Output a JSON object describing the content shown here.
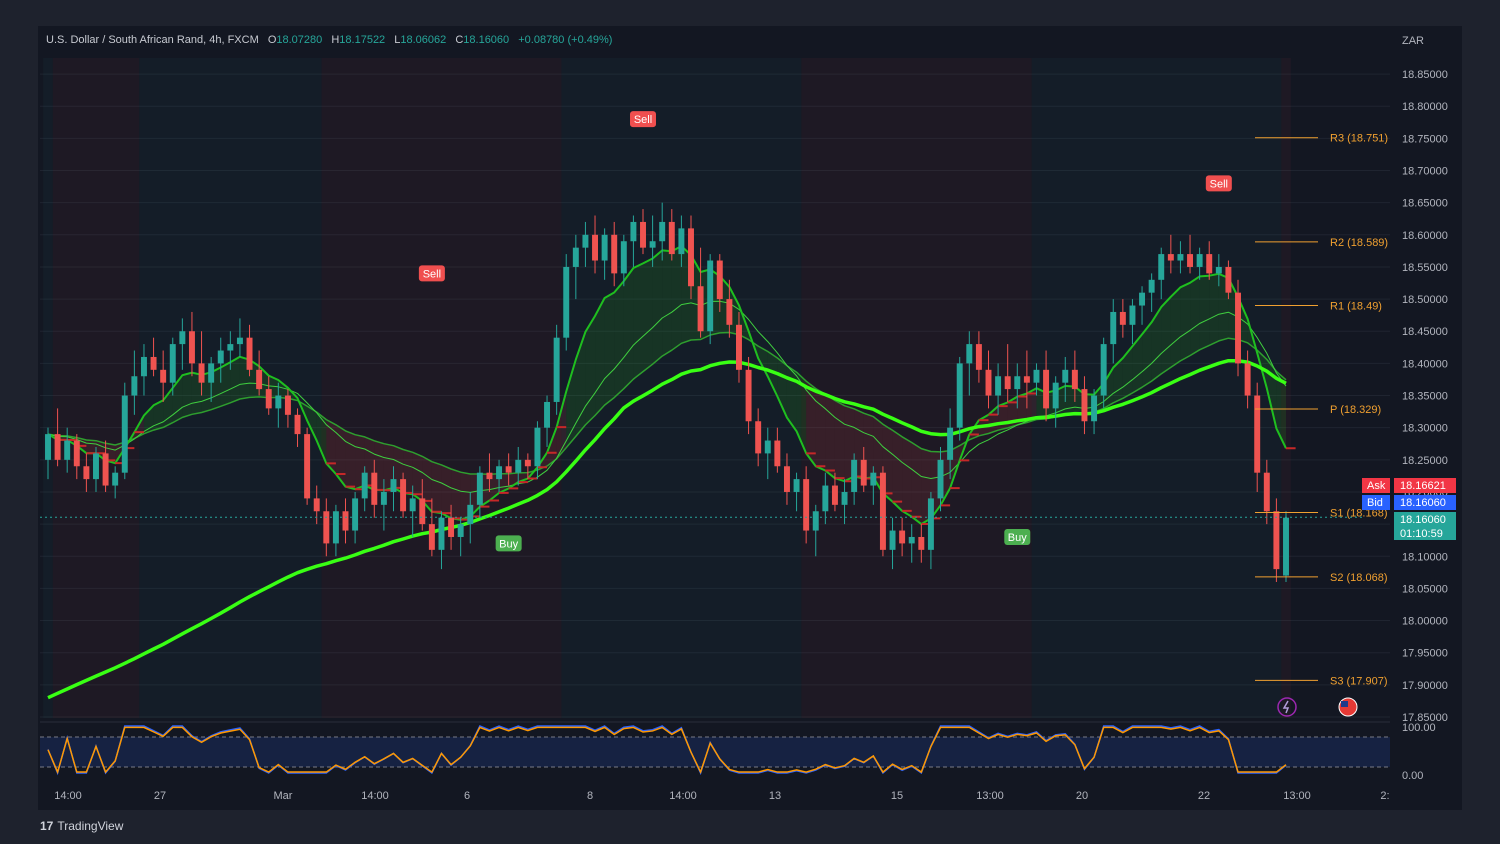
{
  "header": {
    "symbol": "U.S. Dollar / South African Rand, 4h, FXCM",
    "o_label": "O",
    "o_value": "18.07280",
    "h_label": "H",
    "h_value": "18.17522",
    "l_label": "L",
    "l_value": "18.06062",
    "c_label": "C",
    "c_value": "18.16060",
    "change": "+0.08780 (+0.49%)"
  },
  "currency": "ZAR",
  "brand": "TradingView",
  "colors": {
    "up": "#26a69a",
    "down": "#ef5350",
    "ema": "#39ff14",
    "pivot": "#f0a030",
    "background": "#131722"
  },
  "chart_data": {
    "type": "candlestick",
    "y_axis": {
      "range": [
        17.85,
        18.875
      ],
      "ticks": [
        "18.85000",
        "18.80000",
        "18.75000",
        "18.70000",
        "18.65000",
        "18.60000",
        "18.55000",
        "18.50000",
        "18.45000",
        "18.40000",
        "18.35000",
        "18.30000",
        "18.25000",
        "18.20000",
        "18.15000",
        "18.10000",
        "18.05000",
        "18.00000",
        "17.95000",
        "17.90000",
        "17.85000"
      ]
    },
    "x_axis": {
      "ticks": [
        "14:00",
        "27",
        "Mar",
        "14:00",
        "6",
        "8",
        "14:00",
        "13",
        "15",
        "13:00",
        "20",
        "22",
        "13:00",
        "2:"
      ]
    },
    "candles": [
      [
        18.25,
        18.3,
        18.22,
        18.29
      ],
      [
        18.29,
        18.33,
        18.24,
        18.25
      ],
      [
        18.25,
        18.3,
        18.23,
        18.28
      ],
      [
        18.28,
        18.29,
        18.22,
        18.24
      ],
      [
        18.24,
        18.26,
        18.2,
        18.22
      ],
      [
        18.22,
        18.27,
        18.2,
        18.26
      ],
      [
        18.26,
        18.28,
        18.2,
        18.21
      ],
      [
        18.21,
        18.24,
        18.19,
        18.23
      ],
      [
        18.23,
        18.37,
        18.22,
        18.35
      ],
      [
        18.35,
        18.42,
        18.32,
        18.38
      ],
      [
        18.38,
        18.43,
        18.35,
        18.41
      ],
      [
        18.41,
        18.44,
        18.38,
        18.39
      ],
      [
        18.39,
        18.42,
        18.34,
        18.37
      ],
      [
        18.37,
        18.44,
        18.35,
        18.43
      ],
      [
        18.43,
        18.47,
        18.39,
        18.45
      ],
      [
        18.45,
        18.48,
        18.38,
        18.4
      ],
      [
        18.4,
        18.45,
        18.35,
        18.37
      ],
      [
        18.37,
        18.41,
        18.34,
        18.4
      ],
      [
        18.4,
        18.44,
        18.37,
        18.42
      ],
      [
        18.42,
        18.45,
        18.39,
        18.43
      ],
      [
        18.43,
        18.47,
        18.41,
        18.44
      ],
      [
        18.44,
        18.46,
        18.38,
        18.39
      ],
      [
        18.39,
        18.42,
        18.35,
        18.36
      ],
      [
        18.36,
        18.38,
        18.32,
        18.33
      ],
      [
        18.33,
        18.37,
        18.3,
        18.35
      ],
      [
        18.35,
        18.36,
        18.3,
        18.32
      ],
      [
        18.32,
        18.33,
        18.27,
        18.29
      ],
      [
        18.29,
        18.3,
        18.18,
        18.19
      ],
      [
        18.19,
        18.21,
        18.15,
        18.17
      ],
      [
        18.17,
        18.19,
        18.1,
        18.12
      ],
      [
        18.12,
        18.18,
        18.1,
        18.17
      ],
      [
        18.17,
        18.19,
        18.12,
        18.14
      ],
      [
        18.14,
        18.2,
        18.12,
        18.19
      ],
      [
        18.19,
        18.24,
        18.17,
        18.23
      ],
      [
        18.23,
        18.25,
        18.16,
        18.18
      ],
      [
        18.18,
        18.22,
        18.14,
        18.2
      ],
      [
        18.2,
        18.24,
        18.17,
        18.22
      ],
      [
        18.22,
        18.23,
        18.16,
        18.17
      ],
      [
        18.17,
        18.21,
        18.13,
        18.19
      ],
      [
        18.19,
        18.22,
        18.14,
        18.15
      ],
      [
        18.15,
        18.19,
        18.1,
        18.11
      ],
      [
        18.11,
        18.17,
        18.08,
        18.16
      ],
      [
        18.16,
        18.18,
        18.11,
        18.13
      ],
      [
        18.13,
        18.16,
        18.1,
        18.15
      ],
      [
        18.15,
        18.2,
        18.12,
        18.18
      ],
      [
        18.18,
        18.24,
        18.16,
        18.23
      ],
      [
        18.23,
        18.26,
        18.2,
        18.22
      ],
      [
        18.22,
        18.25,
        18.2,
        18.24
      ],
      [
        18.24,
        18.26,
        18.21,
        18.23
      ],
      [
        18.23,
        18.27,
        18.21,
        18.25
      ],
      [
        18.25,
        18.26,
        18.22,
        18.24
      ],
      [
        18.24,
        18.31,
        18.22,
        18.3
      ],
      [
        18.3,
        18.35,
        18.27,
        18.34
      ],
      [
        18.34,
        18.46,
        18.32,
        18.44
      ],
      [
        18.44,
        18.57,
        18.42,
        18.55
      ],
      [
        18.55,
        18.6,
        18.5,
        18.58
      ],
      [
        18.58,
        18.62,
        18.55,
        18.6
      ],
      [
        18.6,
        18.63,
        18.54,
        18.56
      ],
      [
        18.56,
        18.61,
        18.53,
        18.6
      ],
      [
        18.6,
        18.62,
        18.52,
        18.54
      ],
      [
        18.54,
        18.6,
        18.52,
        18.59
      ],
      [
        18.59,
        18.63,
        18.55,
        18.62
      ],
      [
        18.62,
        18.64,
        18.57,
        18.58
      ],
      [
        18.58,
        18.63,
        18.55,
        18.59
      ],
      [
        18.59,
        18.65,
        18.56,
        18.62
      ],
      [
        18.62,
        18.64,
        18.56,
        18.57
      ],
      [
        18.57,
        18.63,
        18.55,
        18.61
      ],
      [
        18.61,
        18.63,
        18.5,
        18.52
      ],
      [
        18.52,
        18.58,
        18.44,
        18.45
      ],
      [
        18.45,
        18.57,
        18.43,
        18.56
      ],
      [
        18.56,
        18.57,
        18.48,
        18.5
      ],
      [
        18.5,
        18.53,
        18.44,
        18.46
      ],
      [
        18.46,
        18.48,
        18.37,
        18.39
      ],
      [
        18.39,
        18.41,
        18.29,
        18.31
      ],
      [
        18.31,
        18.33,
        18.24,
        18.26
      ],
      [
        18.26,
        18.3,
        18.22,
        18.28
      ],
      [
        18.28,
        18.3,
        18.23,
        18.24
      ],
      [
        18.24,
        18.26,
        18.18,
        18.2
      ],
      [
        18.2,
        18.23,
        18.17,
        18.22
      ],
      [
        18.22,
        18.24,
        18.12,
        18.14
      ],
      [
        18.14,
        18.18,
        18.1,
        18.17
      ],
      [
        18.17,
        18.23,
        18.15,
        18.21
      ],
      [
        18.21,
        18.23,
        18.17,
        18.18
      ],
      [
        18.18,
        18.22,
        18.15,
        18.2
      ],
      [
        18.2,
        18.26,
        18.18,
        18.25
      ],
      [
        18.25,
        18.27,
        18.2,
        18.21
      ],
      [
        18.21,
        18.24,
        18.18,
        18.23
      ],
      [
        18.23,
        18.24,
        18.1,
        18.11
      ],
      [
        18.11,
        18.16,
        18.08,
        18.14
      ],
      [
        18.14,
        18.16,
        18.1,
        18.12
      ],
      [
        18.12,
        18.15,
        18.09,
        18.13
      ],
      [
        18.13,
        18.15,
        18.09,
        18.11
      ],
      [
        18.11,
        18.2,
        18.08,
        18.19
      ],
      [
        18.19,
        18.27,
        18.17,
        18.25
      ],
      [
        18.25,
        18.33,
        18.22,
        18.3
      ],
      [
        18.3,
        18.41,
        18.28,
        18.4
      ],
      [
        18.4,
        18.45,
        18.35,
        18.43
      ],
      [
        18.43,
        18.45,
        18.37,
        18.39
      ],
      [
        18.39,
        18.42,
        18.33,
        18.35
      ],
      [
        18.35,
        18.4,
        18.32,
        18.38
      ],
      [
        18.38,
        18.43,
        18.34,
        18.36
      ],
      [
        18.36,
        18.4,
        18.33,
        18.38
      ],
      [
        18.38,
        18.42,
        18.33,
        18.37
      ],
      [
        18.37,
        18.4,
        18.35,
        18.39
      ],
      [
        18.39,
        18.42,
        18.31,
        18.33
      ],
      [
        18.33,
        18.38,
        18.3,
        18.37
      ],
      [
        18.37,
        18.41,
        18.34,
        18.39
      ],
      [
        18.39,
        18.42,
        18.34,
        18.36
      ],
      [
        18.36,
        18.38,
        18.29,
        18.31
      ],
      [
        18.31,
        18.36,
        18.29,
        18.35
      ],
      [
        18.35,
        18.44,
        18.33,
        18.43
      ],
      [
        18.43,
        18.5,
        18.4,
        18.48
      ],
      [
        18.48,
        18.5,
        18.44,
        18.46
      ],
      [
        18.46,
        18.5,
        18.43,
        18.49
      ],
      [
        18.49,
        18.52,
        18.46,
        18.51
      ],
      [
        18.51,
        18.54,
        18.48,
        18.53
      ],
      [
        18.53,
        18.58,
        18.5,
        18.57
      ],
      [
        18.57,
        18.6,
        18.54,
        18.56
      ],
      [
        18.56,
        18.59,
        18.54,
        18.57
      ],
      [
        18.57,
        18.6,
        18.54,
        18.55
      ],
      [
        18.55,
        18.58,
        18.53,
        18.57
      ],
      [
        18.57,
        18.59,
        18.53,
        18.54
      ],
      [
        18.54,
        18.57,
        18.52,
        18.55
      ],
      [
        18.55,
        18.56,
        18.5,
        18.51
      ],
      [
        18.51,
        18.53,
        18.38,
        18.4
      ],
      [
        18.4,
        18.42,
        18.33,
        18.35
      ],
      [
        18.35,
        18.37,
        18.2,
        18.23
      ],
      [
        18.23,
        18.25,
        18.15,
        18.17
      ],
      [
        18.17,
        18.19,
        18.06,
        18.08
      ],
      [
        18.07,
        18.17,
        18.06,
        18.16
      ]
    ],
    "pivots": [
      {
        "label": "R3 (18.751)",
        "value": 18.751
      },
      {
        "label": "R2 (18.589)",
        "value": 18.589
      },
      {
        "label": "R1 (18.49)",
        "value": 18.49
      },
      {
        "label": "P (18.329)",
        "value": 18.329
      },
      {
        "label": "S1 (18.168)",
        "value": 18.168
      },
      {
        "label": "S2 (18.068)",
        "value": 18.068
      },
      {
        "label": "S3 (17.907)",
        "value": 17.907
      }
    ],
    "signals": [
      {
        "label": "Sell",
        "bar": 62,
        "price": 18.78
      },
      {
        "label": "Sell",
        "bar": 122,
        "price": 18.68
      },
      {
        "label": "Sell",
        "bar": 40,
        "price": 18.54
      },
      {
        "label": "Buy",
        "bar": 48,
        "price": 18.12
      },
      {
        "label": "Buy",
        "bar": 101,
        "price": 18.13
      }
    ],
    "price_tags": {
      "ask_label": "Ask",
      "ask": "18.16621",
      "bid_label": "Bid",
      "bid": "18.16060",
      "last": "18.16060",
      "countdown": "01:10:59"
    },
    "oscillator": {
      "ticks": [
        "100.00",
        "0.00"
      ]
    }
  }
}
